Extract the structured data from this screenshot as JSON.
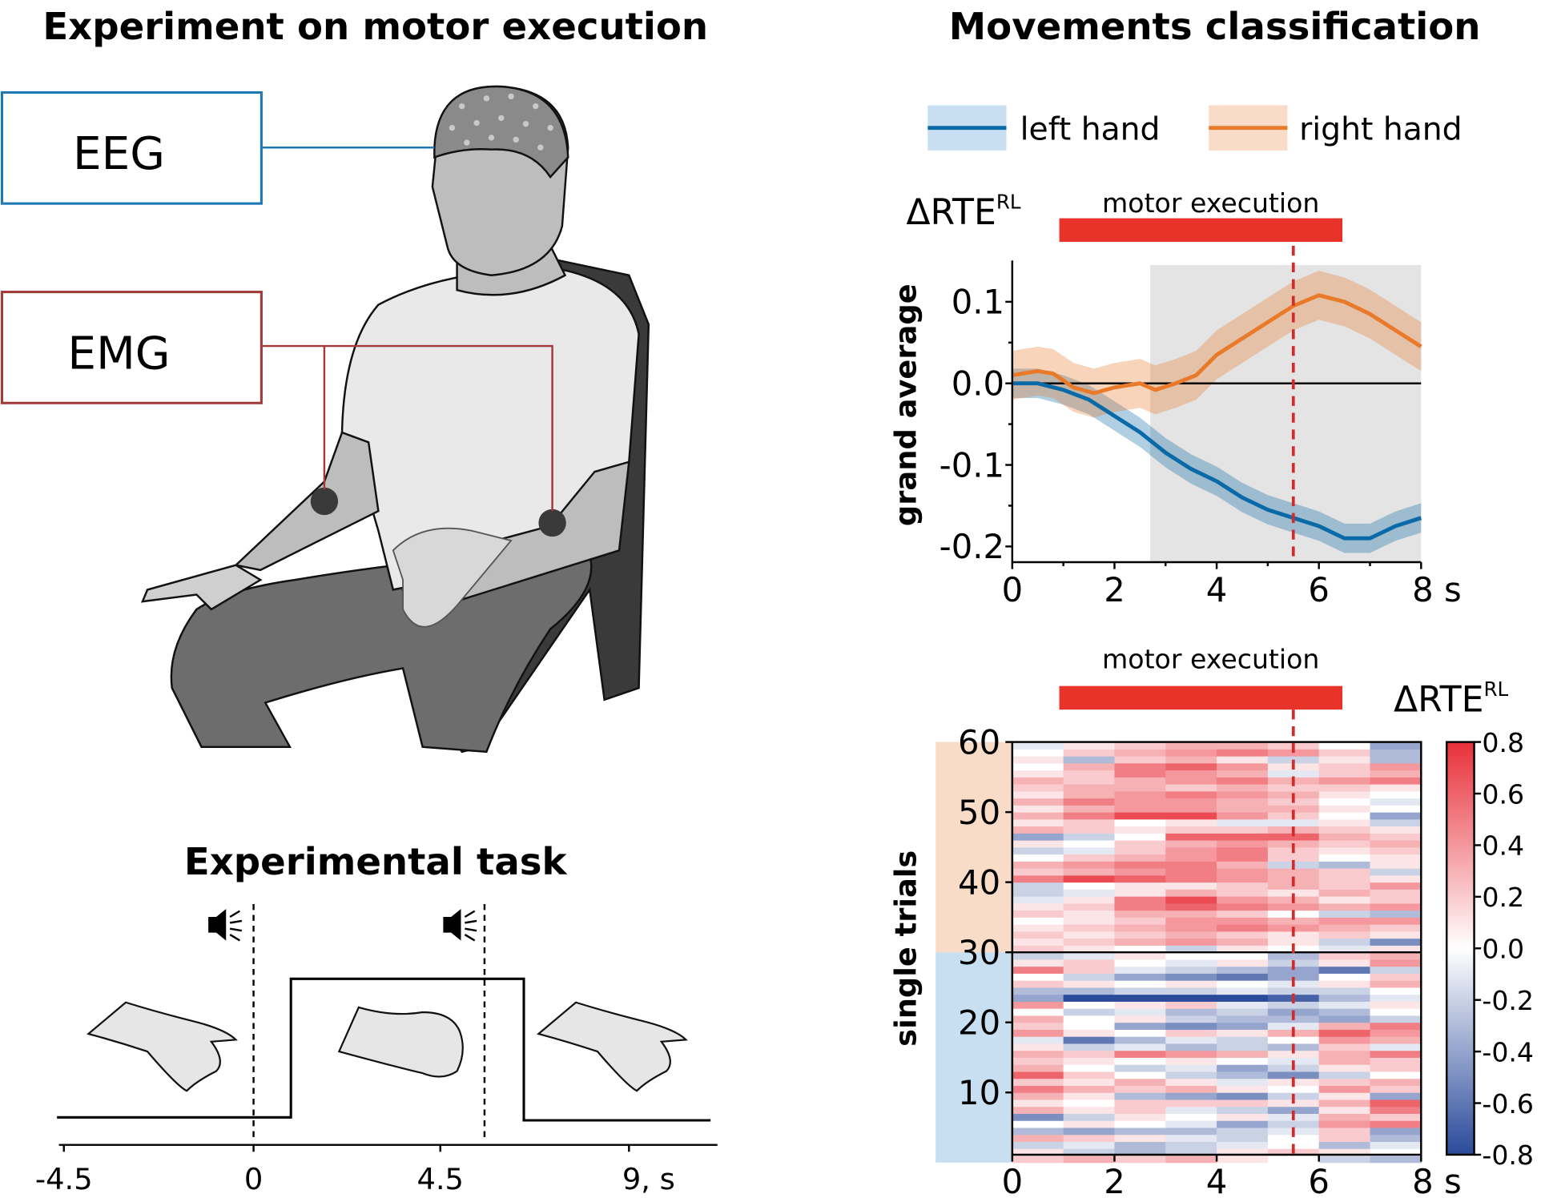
{
  "left_panel": {
    "title": "Experiment on motor execution",
    "eeg_label": "EEG",
    "emg_label": "EMG",
    "task_title": "Experimental task",
    "task_axis_ticks": [
      "-4.5",
      "0",
      "4.5",
      "9, s"
    ],
    "icons": [
      "speaker-sound-icon",
      "speaker-sound-icon"
    ],
    "colors": {
      "eeg": "#1f77b4",
      "emg": "#a33a3a"
    }
  },
  "right_panel": {
    "title": "Movements classification",
    "legend": [
      {
        "label": "left hand",
        "color": "#0a6aa8",
        "band": "#c7dff0"
      },
      {
        "label": "right hand",
        "color": "#e87a2a",
        "band": "#f9dcc8"
      }
    ],
    "motor_execution_label": "motor execution",
    "delta_label": "ΔRTE",
    "delta_sup": "RL"
  },
  "chart_data": [
    {
      "type": "line",
      "ylabel": "grand average",
      "xlabel": "",
      "x_ticks": [
        "0",
        "2",
        "4",
        "6",
        "8 s"
      ],
      "y_ticks": [
        "0.1",
        "0.0",
        "-0.1",
        "-0.2"
      ],
      "xlim": [
        0,
        8
      ],
      "ylim": [
        -0.22,
        0.15
      ],
      "motor_execution_interval": [
        0.92,
        6.46
      ],
      "marker_line_x": 5.5,
      "shaded_interval": [
        2.7,
        8
      ],
      "series": [
        {
          "name": "left hand",
          "color": "#0a6aa8",
          "x": [
            0,
            0.5,
            1,
            1.5,
            2,
            2.5,
            3,
            3.5,
            4,
            4.5,
            5,
            5.5,
            6,
            6.5,
            7,
            7.5,
            8
          ],
          "y": [
            0,
            0,
            -0.008,
            -0.02,
            -0.04,
            -0.06,
            -0.085,
            -0.105,
            -0.12,
            -0.14,
            -0.155,
            -0.165,
            -0.175,
            -0.19,
            -0.19,
            -0.175,
            -0.165
          ],
          "err": 0.018
        },
        {
          "name": "right hand",
          "color": "#e87a2a",
          "x": [
            0,
            0.5,
            0.8,
            1.2,
            1.6,
            2,
            2.5,
            2.8,
            3.2,
            3.6,
            4,
            4.5,
            5,
            5.5,
            6,
            6.5,
            7,
            7.5,
            8
          ],
          "y": [
            0.01,
            0.015,
            0.012,
            -0.005,
            -0.012,
            -0.005,
            0,
            -0.008,
            0,
            0.01,
            0.035,
            0.055,
            0.075,
            0.095,
            0.108,
            0.1,
            0.085,
            0.065,
            0.045
          ],
          "err": 0.03
        }
      ]
    },
    {
      "type": "heatmap",
      "ylabel": "single trials",
      "x_ticks": [
        "0",
        "2",
        "4",
        "6",
        "8 s"
      ],
      "y_ticks": [
        "60",
        "50",
        "40",
        "30",
        "20",
        "10"
      ],
      "xlim": [
        0,
        8
      ],
      "ylim": [
        0,
        60
      ],
      "colorbar_label": "ΔRTE RL",
      "colorbar_ticks": [
        "0.8",
        "0.6",
        "0.4",
        "0.2",
        "0.0",
        "-0.2",
        "-0.4",
        "-0.6",
        "-0.8"
      ],
      "colorbar_range": [
        -0.8,
        0.8
      ],
      "colormap": {
        "low": "#2a4a9a",
        "mid": "#ffffff",
        "high": "#e8303a"
      },
      "group_bands": [
        {
          "trials": [
            1,
            30
          ],
          "color": "#c7dff0",
          "group": "left hand"
        },
        {
          "trials": [
            31,
            60
          ],
          "color": "#f9dcc8",
          "group": "right hand"
        }
      ],
      "marker_line_x": 5.5,
      "motor_execution_interval": [
        0.92,
        6.46
      ],
      "column_times": [
        0.5,
        1.5,
        2.5,
        3.5,
        4.5,
        5.5,
        6.5,
        7.5
      ],
      "rows_trial_1_to_60": [
        [
          0.2,
          0.3,
          0.2,
          0.3,
          0.1,
          0.0,
          -0.2,
          -0.3
        ],
        [
          0.1,
          -0.2,
          -0.3,
          -0.2,
          0.1,
          0.2,
          0.1,
          0.0
        ],
        [
          -0.2,
          -0.1,
          -0.3,
          -0.2,
          -0.1,
          0.0,
          -0.3,
          -0.1
        ],
        [
          0.3,
          0.2,
          0.1,
          -0.1,
          -0.2,
          0.0,
          0.2,
          -0.3
        ],
        [
          -0.3,
          -0.4,
          -0.3,
          -0.3,
          -0.2,
          -0.1,
          0.2,
          -0.4
        ],
        [
          0.0,
          0.1,
          0.0,
          -0.1,
          -0.4,
          -0.2,
          0.4,
          0.5
        ],
        [
          -0.5,
          -0.2,
          0.1,
          0.0,
          0.1,
          -0.1,
          0.3,
          0.2
        ],
        [
          0.3,
          0.1,
          0.2,
          -0.1,
          -0.2,
          -0.4,
          0.1,
          0.5
        ],
        [
          0.1,
          0.0,
          0.2,
          0.2,
          0.2,
          0.1,
          0.3,
          0.6
        ],
        [
          0.3,
          0.1,
          -0.3,
          -0.4,
          -0.5,
          -0.2,
          0.1,
          -0.4
        ],
        [
          0.5,
          0.3,
          0.2,
          0.3,
          0.1,
          0.0,
          0.4,
          0.2
        ],
        [
          0.2,
          0.1,
          0.3,
          0.1,
          -0.1,
          0.1,
          0.2,
          0.3
        ],
        [
          0.6,
          0.2,
          0.0,
          -0.2,
          -0.3,
          -0.5,
          -0.2,
          0.0
        ],
        [
          0.3,
          0.0,
          -0.2,
          -0.1,
          -0.4,
          -0.2,
          0.1,
          0.2
        ],
        [
          0.2,
          0.1,
          0.0,
          0.1,
          0.0,
          -0.1,
          0.3,
          0.2
        ],
        [
          0.3,
          0.2,
          0.5,
          0.4,
          0.3,
          0.1,
          0.3,
          0.5
        ],
        [
          0.1,
          -0.2,
          -0.1,
          -0.3,
          -0.2,
          -0.3,
          0.2,
          -0.1
        ],
        [
          -0.1,
          -0.6,
          -0.3,
          -0.1,
          -0.2,
          0.0,
          0.4,
          0.3
        ],
        [
          0.4,
          0.1,
          0.0,
          0.2,
          0.1,
          0.3,
          0.6,
          0.4
        ],
        [
          0.2,
          0.0,
          -0.4,
          -0.5,
          -0.4,
          -0.1,
          0.3,
          0.5
        ],
        [
          0.3,
          0.0,
          0.1,
          -0.2,
          -0.3,
          -0.3,
          -0.4,
          -0.2
        ],
        [
          0.0,
          -0.2,
          -0.1,
          -0.3,
          -0.2,
          -0.4,
          -0.3,
          0.0
        ],
        [
          0.4,
          0.0,
          0.1,
          0.2,
          -0.1,
          -0.2,
          -0.1,
          0.1
        ],
        [
          -0.4,
          -0.8,
          -0.8,
          -0.8,
          -0.8,
          -0.7,
          -0.3,
          -0.1
        ],
        [
          -0.3,
          -0.3,
          -0.2,
          -0.2,
          -0.1,
          -0.2,
          -0.2,
          0.0
        ],
        [
          0.2,
          0.1,
          0.0,
          0.1,
          0.0,
          -0.1,
          0.1,
          0.3
        ],
        [
          0.0,
          -0.2,
          -0.4,
          -0.5,
          -0.6,
          -0.4,
          0.0,
          0.2
        ],
        [
          0.5,
          0.2,
          -0.1,
          -0.2,
          -0.3,
          -0.4,
          -0.6,
          -0.2
        ],
        [
          0.1,
          0.2,
          0.0,
          -0.1,
          0.1,
          -0.2,
          0.1,
          0.4
        ],
        [
          -0.2,
          -0.1,
          0.1,
          0.0,
          0.0,
          -0.3,
          0.2,
          0.3
        ],
        [
          0.2,
          0.1,
          0.0,
          -0.2,
          0.1,
          0.0,
          -0.1,
          0.1
        ],
        [
          0.1,
          0.2,
          0.3,
          0.4,
          0.3,
          0.1,
          -0.2,
          -0.5
        ],
        [
          0.2,
          0.1,
          0.2,
          0.3,
          0.2,
          0.1,
          0.2,
          0.1
        ],
        [
          0.1,
          0.2,
          0.3,
          0.4,
          0.5,
          0.4,
          0.3,
          0.2
        ],
        [
          0.0,
          0.1,
          0.2,
          0.4,
          0.4,
          0.3,
          0.4,
          0.4
        ],
        [
          0.2,
          0.1,
          0.3,
          0.3,
          0.2,
          0.0,
          -0.2,
          -0.3
        ],
        [
          0.1,
          0.2,
          0.5,
          0.6,
          0.5,
          0.4,
          0.3,
          0.4
        ],
        [
          -0.1,
          0.1,
          0.5,
          0.7,
          0.4,
          0.3,
          0.1,
          0.2
        ],
        [
          -0.2,
          -0.1,
          0.1,
          0.3,
          0.2,
          0.1,
          0.3,
          0.2
        ],
        [
          -0.2,
          0.0,
          0.1,
          0.1,
          0.2,
          0.3,
          0.2,
          0.4
        ],
        [
          0.5,
          0.7,
          0.6,
          0.5,
          0.4,
          0.3,
          0.2,
          0.1
        ],
        [
          0.2,
          0.3,
          0.4,
          0.5,
          0.4,
          0.3,
          0.2,
          -0.2
        ],
        [
          0.3,
          0.4,
          0.5,
          0.5,
          0.3,
          -0.2,
          -0.3,
          0.1
        ],
        [
          0.0,
          0.2,
          0.3,
          0.4,
          0.5,
          0.2,
          0.0,
          0.1
        ],
        [
          -0.2,
          -0.1,
          0.2,
          0.4,
          0.5,
          0.2,
          0.1,
          0.2
        ],
        [
          0.1,
          0.0,
          0.2,
          0.3,
          0.4,
          0.3,
          0.2,
          0.3
        ],
        [
          -0.4,
          -0.2,
          0.0,
          0.6,
          0.6,
          0.6,
          0.3,
          0.2
        ],
        [
          0.3,
          0.2,
          0.1,
          0.2,
          0.2,
          0.3,
          0.2,
          0.1
        ],
        [
          0.1,
          0.2,
          0.0,
          0.1,
          -0.1,
          -0.1,
          0.1,
          -0.2
        ],
        [
          0.3,
          0.5,
          0.7,
          0.7,
          0.4,
          0.2,
          0.0,
          -0.4
        ],
        [
          0.1,
          0.3,
          0.4,
          0.4,
          0.3,
          0.3,
          0.1,
          0.0
        ],
        [
          0.3,
          0.5,
          0.4,
          0.4,
          0.3,
          0.2,
          0.0,
          -0.1
        ],
        [
          0.1,
          0.3,
          0.4,
          0.5,
          0.4,
          0.3,
          0.1,
          0.0
        ],
        [
          0.2,
          0.3,
          0.3,
          0.2,
          0.3,
          0.2,
          0.2,
          0.1
        ],
        [
          0.3,
          0.2,
          0.3,
          0.4,
          0.5,
          0.3,
          0.4,
          0.5
        ],
        [
          0.1,
          0.2,
          0.5,
          0.4,
          0.3,
          -0.1,
          0.2,
          0.3
        ],
        [
          0.0,
          0.3,
          0.5,
          0.6,
          0.4,
          0.1,
          0.2,
          0.4
        ],
        [
          0.1,
          -0.3,
          0.2,
          0.3,
          0.1,
          -0.2,
          0.1,
          -0.3
        ],
        [
          0.0,
          0.2,
          0.3,
          0.4,
          0.5,
          0.4,
          0.2,
          -0.3
        ],
        [
          -0.1,
          0.1,
          0.2,
          0.3,
          0.3,
          0.2,
          0.0,
          -0.4
        ]
      ]
    }
  ]
}
